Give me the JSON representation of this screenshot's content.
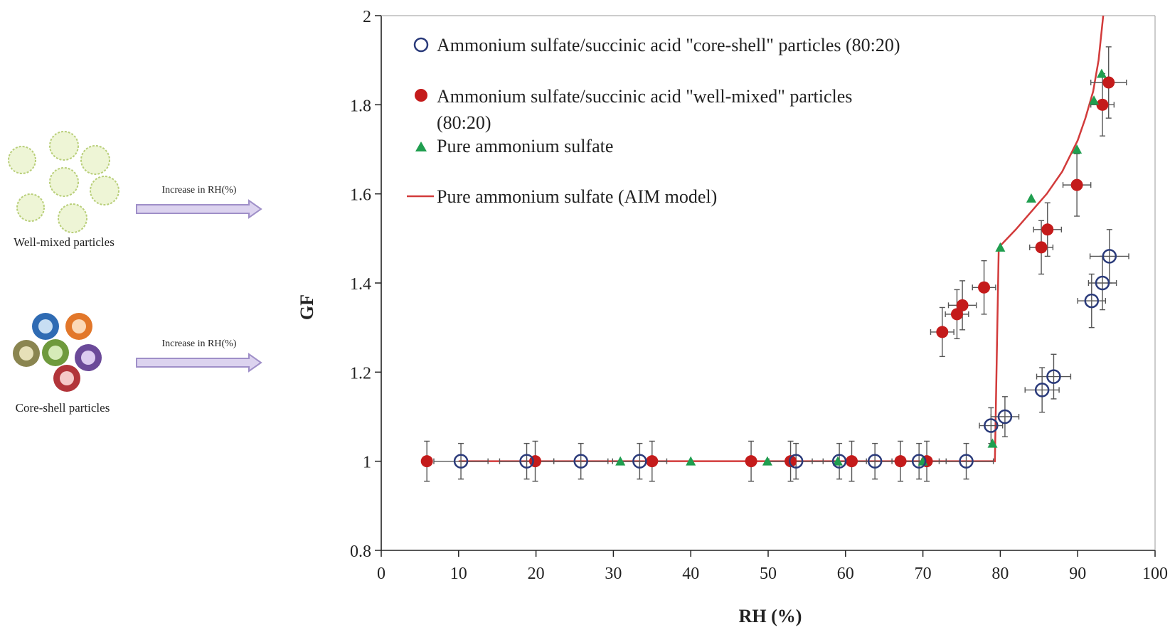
{
  "schematic": {
    "arrow_text_1": "Increase in RH(%)",
    "arrow_text_2": "Increase in RH(%)",
    "label_well_mixed": "Well-mixed particles",
    "label_core_shell": "Core-shell particles",
    "colors": {
      "well_mixed_fill": "#eef5d6",
      "well_mixed_edge": "#b9cf7a",
      "arrow_fill": "#dcd3ef",
      "arrow_edge": "#9f8fc8",
      "core_shell_rings": [
        "#2f6bb3",
        "#e2772a",
        "#8a8550",
        "#6f9a3d",
        "#6b4a99",
        "#b2353a"
      ]
    }
  },
  "chart_data": {
    "type": "scatter",
    "title": "",
    "xlabel": "RH (%)",
    "ylabel": "GF",
    "xlim": [
      0,
      100
    ],
    "ylim": [
      0.8,
      2
    ],
    "x_ticks": [
      "0",
      "10",
      "20",
      "30",
      "40",
      "50",
      "60",
      "70",
      "80",
      "90",
      "100"
    ],
    "y_ticks": [
      "0.8",
      "1",
      "1.2",
      "1.4",
      "1.6",
      "1.8",
      "2"
    ],
    "grid": false,
    "legend_position": "top-left (inside plot)",
    "series": [
      {
        "name": "Ammonium sulfate/succinic acid \"core-shell\" particles (80:20)",
        "marker": "open-circle",
        "color": "#2a3a7a",
        "points": [
          {
            "x": 10.3,
            "y": 1.0,
            "xerr": 3.5,
            "yerr": 0.04
          },
          {
            "x": 18.8,
            "y": 1.0,
            "xerr": 3.5,
            "yerr": 0.04
          },
          {
            "x": 25.8,
            "y": 1.0,
            "xerr": 3.5,
            "yerr": 0.04
          },
          {
            "x": 33.4,
            "y": 1.0,
            "xerr": 3.5,
            "yerr": 0.04
          },
          {
            "x": 53.6,
            "y": 1.0,
            "xerr": 3.5,
            "yerr": 0.04
          },
          {
            "x": 59.2,
            "y": 1.0,
            "xerr": 3.5,
            "yerr": 0.04
          },
          {
            "x": 63.8,
            "y": 1.0,
            "xerr": 3.5,
            "yerr": 0.04
          },
          {
            "x": 69.5,
            "y": 1.0,
            "xerr": 3.5,
            "yerr": 0.04
          },
          {
            "x": 75.6,
            "y": 1.0,
            "xerr": 3.5,
            "yerr": 0.04
          },
          {
            "x": 78.8,
            "y": 1.08,
            "xerr": 1.5,
            "yerr": 0.04
          },
          {
            "x": 80.6,
            "y": 1.1,
            "xerr": 1.8,
            "yerr": 0.045
          },
          {
            "x": 85.4,
            "y": 1.16,
            "xerr": 2.2,
            "yerr": 0.05
          },
          {
            "x": 86.9,
            "y": 1.19,
            "xerr": 2.2,
            "yerr": 0.05
          },
          {
            "x": 91.8,
            "y": 1.36,
            "xerr": 1.8,
            "yerr": 0.06
          },
          {
            "x": 93.2,
            "y": 1.4,
            "xerr": 1.8,
            "yerr": 0.06
          },
          {
            "x": 94.1,
            "y": 1.46,
            "xerr": 2.5,
            "yerr": 0.06
          }
        ]
      },
      {
        "name": "Ammonium sulfate/succinic acid \"well-mixed\" particles (80:20)",
        "marker": "filled-circle",
        "color": "#c41b1b",
        "points": [
          {
            "x": 5.9,
            "y": 1.0,
            "xerr": 0,
            "yerr": 0.045
          },
          {
            "x": 19.9,
            "y": 1.0,
            "xerr": 0,
            "yerr": 0.045
          },
          {
            "x": 35.0,
            "y": 1.0,
            "xerr": 0,
            "yerr": 0.045
          },
          {
            "x": 47.8,
            "y": 1.0,
            "xerr": 0,
            "yerr": 0.045
          },
          {
            "x": 52.9,
            "y": 1.0,
            "xerr": 0,
            "yerr": 0.045
          },
          {
            "x": 60.8,
            "y": 1.0,
            "xerr": 0,
            "yerr": 0.045
          },
          {
            "x": 67.1,
            "y": 1.0,
            "xerr": 0,
            "yerr": 0.045
          },
          {
            "x": 70.5,
            "y": 1.0,
            "xerr": 0,
            "yerr": 0.045
          },
          {
            "x": 72.5,
            "y": 1.29,
            "xerr": 1.5,
            "yerr": 0.055
          },
          {
            "x": 74.4,
            "y": 1.33,
            "xerr": 1.5,
            "yerr": 0.055
          },
          {
            "x": 75.1,
            "y": 1.35,
            "xerr": 1.8,
            "yerr": 0.055
          },
          {
            "x": 77.9,
            "y": 1.39,
            "xerr": 1.5,
            "yerr": 0.06
          },
          {
            "x": 85.3,
            "y": 1.48,
            "xerr": 1.5,
            "yerr": 0.06
          },
          {
            "x": 86.1,
            "y": 1.52,
            "xerr": 1.8,
            "yerr": 0.06
          },
          {
            "x": 89.9,
            "y": 1.62,
            "xerr": 1.8,
            "yerr": 0.07
          },
          {
            "x": 93.2,
            "y": 1.8,
            "xerr": 1.5,
            "yerr": 0.07
          },
          {
            "x": 94.0,
            "y": 1.85,
            "xerr": 2.3,
            "yerr": 0.08
          }
        ]
      },
      {
        "name": "Pure ammonium sulfate",
        "marker": "triangle",
        "color": "#1f9e4f",
        "points": [
          {
            "x": 30.9,
            "y": 1.0
          },
          {
            "x": 40.0,
            "y": 1.0
          },
          {
            "x": 49.9,
            "y": 1.0
          },
          {
            "x": 59.0,
            "y": 1.0
          },
          {
            "x": 70.0,
            "y": 1.0
          },
          {
            "x": 79.0,
            "y": 1.04
          },
          {
            "x": 80.0,
            "y": 1.48
          },
          {
            "x": 84.0,
            "y": 1.59
          },
          {
            "x": 89.9,
            "y": 1.7
          },
          {
            "x": 92.1,
            "y": 1.81
          },
          {
            "x": 93.1,
            "y": 1.87
          }
        ]
      },
      {
        "name": "Pure ammonium sulfate (AIM model)",
        "marker": "line",
        "color": "#d23b3b",
        "points": [
          {
            "x": 10,
            "y": 1.0
          },
          {
            "x": 79.3,
            "y": 1.0
          },
          {
            "x": 79.8,
            "y": 1.48
          },
          {
            "x": 82,
            "y": 1.52
          },
          {
            "x": 84,
            "y": 1.56
          },
          {
            "x": 86,
            "y": 1.6
          },
          {
            "x": 88,
            "y": 1.65
          },
          {
            "x": 90,
            "y": 1.72
          },
          {
            "x": 91,
            "y": 1.77
          },
          {
            "x": 92,
            "y": 1.83
          },
          {
            "x": 92.7,
            "y": 1.9
          },
          {
            "x": 93.3,
            "y": 2.0
          }
        ]
      }
    ],
    "legend": [
      "Ammonium sulfate/succinic acid \"core-shell\" particles (80:20)",
      "Ammonium sulfate/succinic acid \"well-mixed\" particles",
      "(80:20)",
      "Pure ammonium sulfate",
      "Pure ammonium sulfate (AIM model)"
    ]
  }
}
